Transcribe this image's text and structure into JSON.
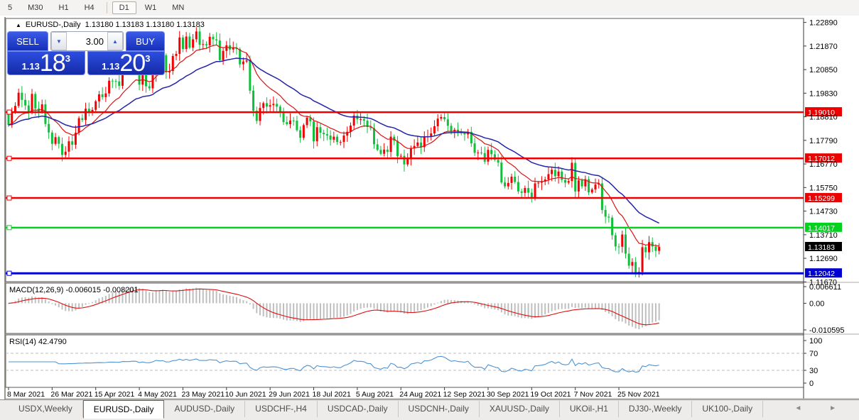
{
  "toolbar": {
    "items": [
      "5",
      "M30",
      "H1",
      "H4",
      "D1",
      "W1",
      "MN"
    ],
    "active": "D1"
  },
  "header": {
    "collapse_icon": "▲",
    "title": "EURUSD-,Daily",
    "ohlc": "1.13180 1.13183 1.13180 1.13183"
  },
  "trade_widget": {
    "sell_label": "SELL",
    "buy_label": "BUY",
    "volume": "3.00",
    "down_arrow": "▼",
    "up_arrow": "▲",
    "sell_price": {
      "small": "1.13",
      "big": "18",
      "sup": "3"
    },
    "buy_price": {
      "small": "1.13",
      "big": "20",
      "sup": "3"
    }
  },
  "chart_data": {
    "type": "candlestick",
    "symbol": "EURUSD-,Daily",
    "up_color": "#f40000",
    "down_color": "#12bf3c",
    "ma_fast": {
      "period": 13,
      "color": "#dd1111"
    },
    "ma_slow": {
      "period": 34,
      "color": "#2424a8"
    },
    "y_range": [
      1.1168,
      1.2294
    ],
    "price_axis_ticks": [
      "1.22890",
      "1.21870",
      "1.20850",
      "1.19830",
      "1.18810",
      "1.17790",
      "1.16770",
      "1.15750",
      "1.14730",
      "1.13710",
      "1.12690",
      "1.11670"
    ],
    "h_lines": [
      {
        "price": 1.1901,
        "label": "1.19010",
        "color": "#ee0000"
      },
      {
        "price": 1.17012,
        "label": "1.17012",
        "color": "#ee0000"
      },
      {
        "price": 1.15299,
        "label": "1.15299",
        "color": "#ee0000"
      },
      {
        "price": 1.14017,
        "label": "1.14017",
        "color": "#00d21e"
      },
      {
        "price": 1.12042,
        "label": "1.12042",
        "color": "#0000d2"
      }
    ],
    "current_price": {
      "price": 1.13183,
      "label": "1.13183",
      "color": "#000000"
    },
    "x_labels": [
      "8 Mar 2021",
      "26 Mar 2021",
      "15 Apr 2021",
      "4 May 2021",
      "23 May 2021",
      "10 Jun 2021",
      "29 Jun 2021",
      "18 Jul 2021",
      "5 Aug 2021",
      "24 Aug 2021",
      "12 Sep 2021",
      "30 Sep 2021",
      "19 Oct 2021",
      "7 Nov 2021",
      "25 Nov 2021"
    ],
    "label_every_n_bars": 13,
    "first_open": 1.19,
    "closes": [
      1.1845,
      1.19,
      1.1928,
      1.1985,
      1.1954,
      1.193,
      1.19,
      1.198,
      1.1917,
      1.1905,
      1.1935,
      1.185,
      1.1813,
      1.1764,
      1.1793,
      1.1764,
      1.1716,
      1.173,
      1.1775,
      1.176,
      1.1812,
      1.1875,
      1.1867,
      1.1916,
      1.1899,
      1.1911,
      1.1948,
      1.1978,
      1.1966,
      1.1982,
      1.2037,
      1.2036,
      1.2034,
      1.2015,
      1.2098,
      1.2089,
      1.209,
      1.2125,
      1.2122,
      1.202,
      1.2063,
      1.2013,
      1.2004,
      1.2064,
      1.2165,
      1.213,
      1.2147,
      1.2073,
      1.2079,
      1.2144,
      1.2153,
      1.2224,
      1.2174,
      1.2228,
      1.218,
      1.2216,
      1.225,
      1.2192,
      1.2195,
      1.219,
      1.2227,
      1.2216,
      1.2211,
      1.2126,
      1.2166,
      1.219,
      1.2172,
      1.2179,
      1.2174,
      1.2108,
      1.212,
      1.2125,
      1.1994,
      1.1907,
      1.1863,
      1.1919,
      1.194,
      1.1925,
      1.1931,
      1.1937,
      1.1925,
      1.1899,
      1.1858,
      1.1849,
      1.1865,
      1.1864,
      1.1823,
      1.179,
      1.1845,
      1.1877,
      1.1861,
      1.1775,
      1.1836,
      1.1812,
      1.1806,
      1.18,
      1.1782,
      1.1795,
      1.1772,
      1.1772,
      1.18,
      1.1816,
      1.1843,
      1.1886,
      1.187,
      1.1871,
      1.1864,
      1.1837,
      1.1832,
      1.1762,
      1.1738,
      1.1721,
      1.1739,
      1.1729,
      1.1795,
      1.1777,
      1.171,
      1.1712,
      1.1675,
      1.1697,
      1.1745,
      1.1755,
      1.177,
      1.175,
      1.1796,
      1.1796,
      1.1809,
      1.184,
      1.1873,
      1.188,
      1.187,
      1.1842,
      1.1816,
      1.1825,
      1.1813,
      1.181,
      1.1805,
      1.1816,
      1.1766,
      1.1725,
      1.1726,
      1.1724,
      1.1687,
      1.1738,
      1.1719,
      1.1695,
      1.1683,
      1.1597,
      1.158,
      1.1595,
      1.1622,
      1.1599,
      1.1558,
      1.1552,
      1.1573,
      1.1553,
      1.153,
      1.1593,
      1.1596,
      1.1601,
      1.161,
      1.1633,
      1.1652,
      1.1624,
      1.1644,
      1.1608,
      1.1596,
      1.1603,
      1.1682,
      1.1558,
      1.1606,
      1.158,
      1.1611,
      1.1554,
      1.1567,
      1.1588,
      1.1593,
      1.1478,
      1.1449,
      1.1445,
      1.1369,
      1.132,
      1.1319,
      1.1372,
      1.1289,
      1.1237,
      1.1253,
      1.12,
      1.121,
      1.1317,
      1.1295,
      1.1339,
      1.132,
      1.1301,
      1.1318
    ],
    "macd": {
      "title": "MACD(12,26,9) -0.006015 -0.008201",
      "fast": 12,
      "slow": 26,
      "signal": 9,
      "main_value": "-0.006015",
      "signal_value": "-0.008201",
      "ticks": [
        "0.006611",
        "0.00",
        "-0.010595"
      ],
      "range": [
        -0.010595,
        0.006611
      ],
      "hist_color": "#bfbfbf",
      "signal_color": "#dd1111"
    },
    "rsi": {
      "title": "RSI(14) 42.4790",
      "period": 14,
      "value": "42.4790",
      "ticks": [
        "100",
        "70",
        "30",
        "0"
      ],
      "levels": [
        70,
        30
      ],
      "color": "#4f93d4"
    }
  },
  "tabbar": {
    "tabs": [
      "USDX,Weekly",
      "EURUSD-,Daily",
      "AUDUSD-,Daily",
      "USDCHF-,H4",
      "USDCAD-,Daily",
      "USDCNH-,Daily",
      "XAUUSD-,Daily",
      "UKOil-,H1",
      "DJ30-,Weekly",
      "UK100-,Daily"
    ],
    "active_index": 1,
    "left_arrow": "◄",
    "right_arrow": "►"
  }
}
